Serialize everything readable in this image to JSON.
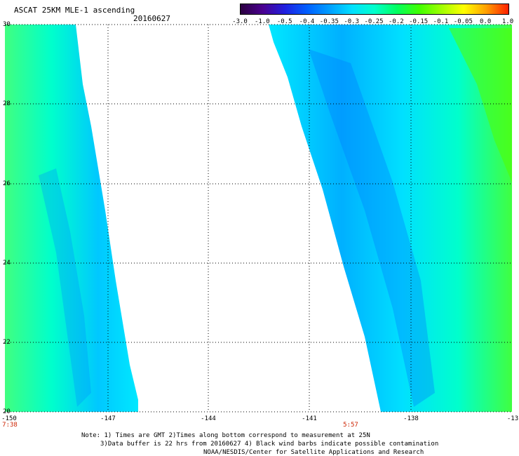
{
  "header": {
    "title": "ASCAT 25KM MLE-1 ascending",
    "date": "20160627"
  },
  "colorbar": {
    "labels": [
      "-3.0",
      "-1.0",
      "-0.5",
      "-0.4",
      "-0.35",
      "-0.3",
      "-0.25",
      "-0.2",
      "-0.15",
      "-0.1",
      "-0.05",
      "0.0",
      "1.0"
    ],
    "colors": [
      "#2b0040",
      "#4a0090",
      "#2020e0",
      "#0060ff",
      "#00a0ff",
      "#00e0ff",
      "#00ffcc",
      "#00ff60",
      "#40ff00",
      "#a0ff00",
      "#ffff00",
      "#ffa000",
      "#ff2000"
    ]
  },
  "map": {
    "lat_labels": [
      "30",
      "28",
      "26",
      "24",
      "22",
      "20"
    ],
    "lon_labels": [
      "-150",
      "-147",
      "-144",
      "-141",
      "-138",
      "-13"
    ],
    "time_labels": [
      "7:38",
      "5:57"
    ],
    "colors": {
      "ocean_low": "#00e0ff",
      "ocean_mid": "#00ffcc",
      "ocean_high": "#40ff40",
      "grid": "#000000",
      "time_text": "#cc2200"
    }
  },
  "notes": {
    "line1": "Note: 1) Times are GMT 2)Times along bottom correspond to measurement at 25N",
    "line2": "3)Data buffer is 22 hrs from 20160627 4) Black wind barbs indicate possible contamination",
    "line3": "NOAA/NESDIS/Center for Satellite Applications and Research"
  }
}
